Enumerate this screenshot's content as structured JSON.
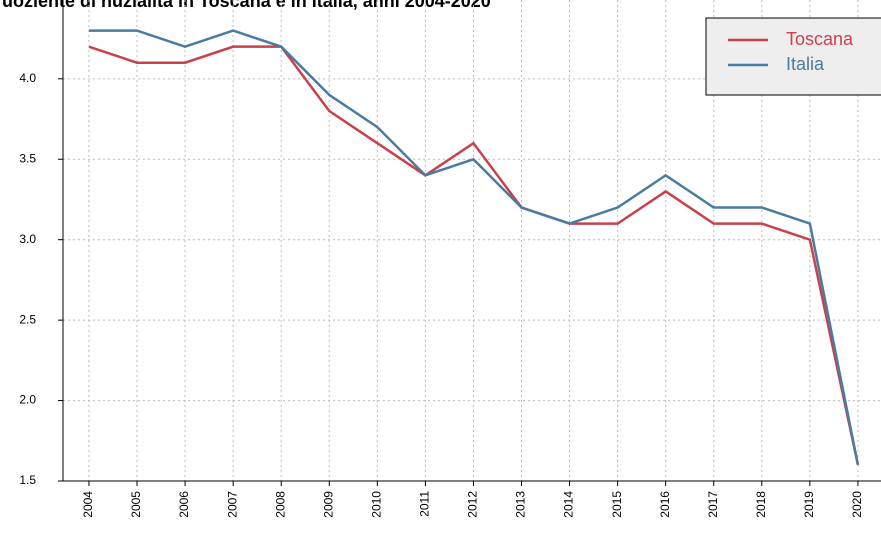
{
  "chart_data": {
    "type": "line",
    "title": "uoziente di nuzialità in Toscana e in Italia, anni 2004-2020",
    "x": [
      2004,
      2005,
      2006,
      2007,
      2008,
      2009,
      2010,
      2011,
      2012,
      2013,
      2014,
      2015,
      2016,
      2017,
      2018,
      2019,
      2020
    ],
    "series": [
      {
        "name": "Toscana",
        "color": "#c8414b",
        "values": [
          4.2,
          4.1,
          4.1,
          4.2,
          4.2,
          3.8,
          3.6,
          3.4,
          3.6,
          3.2,
          3.1,
          3.1,
          3.3,
          3.1,
          3.1,
          3.0,
          1.6
        ]
      },
      {
        "name": "Italia",
        "color": "#4a7ba0",
        "values": [
          4.3,
          4.3,
          4.2,
          4.3,
          4.2,
          3.9,
          3.7,
          3.4,
          3.5,
          3.2,
          3.1,
          3.2,
          3.4,
          3.2,
          3.2,
          3.1,
          1.6
        ]
      }
    ],
    "xlim": [
      2003.46,
      2020.48
    ],
    "xticks": [
      2004,
      2005,
      2006,
      2007,
      2008,
      2009,
      2010,
      2011,
      2012,
      2013,
      2014,
      2015,
      2016,
      2017,
      2018,
      2019,
      2020
    ],
    "ylim": [
      1.5,
      4.49
    ],
    "yticks": [
      {
        "value": 1.5,
        "label": "1.5"
      },
      {
        "value": 2,
        "label": "2.0"
      },
      2.5,
      {
        "value": 3,
        "label": "3.0"
      },
      3.5,
      {
        "value": 4,
        "label": "4.0"
      }
    ],
    "grid": true,
    "legend": "top-right"
  }
}
